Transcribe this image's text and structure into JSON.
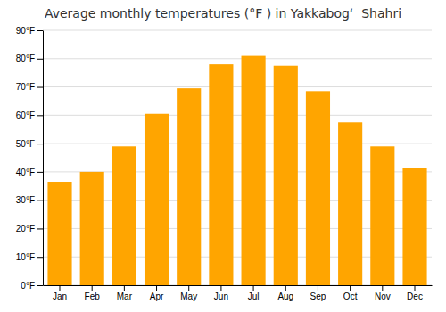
{
  "chart_data": {
    "type": "bar",
    "title": "Average monthly temperatures (°F ) in Yakkabogʻ  Shahri",
    "categories": [
      "Jan",
      "Feb",
      "Mar",
      "Apr",
      "May",
      "Jun",
      "Jul",
      "Aug",
      "Sep",
      "Oct",
      "Nov",
      "Dec"
    ],
    "values": [
      36.5,
      40.0,
      49.0,
      60.5,
      69.5,
      78.0,
      81.0,
      77.5,
      68.5,
      57.5,
      49.0,
      41.5
    ],
    "color": "#FFA500",
    "ylim": [
      0,
      90
    ],
    "yticks": [
      {
        "value": 0,
        "label": "0°F"
      },
      {
        "value": 10,
        "label": "10°F"
      },
      {
        "value": 20,
        "label": "20°F"
      },
      {
        "value": 30,
        "label": "30°F"
      },
      {
        "value": 40,
        "label": "40°F"
      },
      {
        "value": 50,
        "label": "50°F"
      },
      {
        "value": 60,
        "label": "60°F"
      },
      {
        "value": 70,
        "label": "70°F"
      },
      {
        "value": 80,
        "label": "80°F"
      },
      {
        "value": 90,
        "label": "90°F"
      }
    ],
    "grid": true
  }
}
